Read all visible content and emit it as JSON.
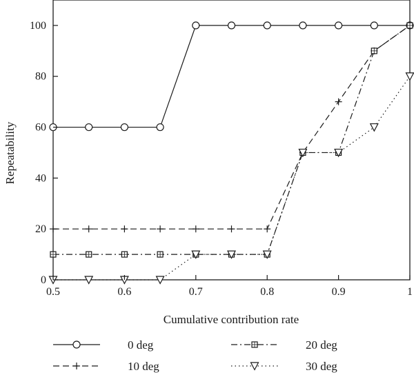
{
  "chart_data": {
    "type": "line",
    "xlabel": "Cumulative contribution rate",
    "ylabel": "Repeatability",
    "xlim": [
      0.5,
      1.0
    ],
    "ylim": [
      0,
      110
    ],
    "xticks": [
      "0.5",
      "0.6",
      "0.7",
      "0.8",
      "0.9",
      "1"
    ],
    "yticks": [
      "0",
      "20",
      "40",
      "60",
      "80",
      "100"
    ],
    "grid": false,
    "legend_position": "bottom",
    "series": [
      {
        "name": "0 deg",
        "line_style": "solid",
        "marker": "circle",
        "x": [
          0.5,
          0.55,
          0.6,
          0.65,
          0.7,
          0.75,
          0.8,
          0.85,
          0.9,
          0.95,
          1.0
        ],
        "y": [
          60,
          60,
          60,
          60,
          100,
          100,
          100,
          100,
          100,
          100,
          100
        ]
      },
      {
        "name": "10 deg",
        "line_style": "dashed",
        "marker": "plus",
        "x": [
          0.5,
          0.55,
          0.6,
          0.65,
          0.7,
          0.75,
          0.8,
          0.85,
          0.9,
          0.95,
          1.0
        ],
        "y": [
          20,
          20,
          20,
          20,
          20,
          20,
          20,
          50,
          70,
          90,
          100
        ]
      },
      {
        "name": "20 deg",
        "line_style": "dashdot",
        "marker": "square",
        "x": [
          0.5,
          0.55,
          0.6,
          0.65,
          0.7,
          0.75,
          0.8,
          0.85,
          0.9,
          0.95,
          1.0
        ],
        "y": [
          10,
          10,
          10,
          10,
          10,
          10,
          10,
          50,
          50,
          90,
          100
        ]
      },
      {
        "name": "30 deg",
        "line_style": "dotted",
        "marker": "triangle-down",
        "x": [
          0.5,
          0.55,
          0.6,
          0.65,
          0.7,
          0.75,
          0.8,
          0.85,
          0.9,
          0.95,
          1.0
        ],
        "y": [
          0,
          0,
          0,
          0,
          10,
          10,
          10,
          50,
          50,
          60,
          80
        ]
      }
    ],
    "colors": {
      "line": "#1a1a1a",
      "background": "#ffffff"
    }
  }
}
